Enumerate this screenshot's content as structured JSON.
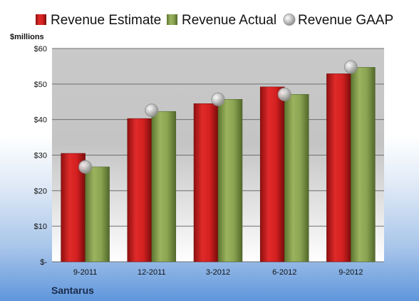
{
  "chart_data": {
    "type": "bar",
    "ylabel": "$millions",
    "company": "Santarus",
    "categories": [
      "9-2011",
      "12-2011",
      "3-2012",
      "6-2012",
      "9-2012"
    ],
    "yticks": [
      "$-",
      "$10",
      "$20",
      "$30",
      "$40",
      "$50",
      "$60"
    ],
    "ylim": [
      0,
      60
    ],
    "grid": true,
    "legend_position": "top",
    "series": [
      {
        "name": "Revenue Estimate",
        "kind": "bar",
        "color": "#c81e1e",
        "values": [
          30.5,
          40.3,
          44.5,
          49.2,
          52.9
        ]
      },
      {
        "name": "Revenue Actual",
        "kind": "bar",
        "color": "#7f9a48",
        "values": [
          26.7,
          42.3,
          45.7,
          47.1,
          54.7
        ]
      },
      {
        "name": "Revenue GAAP",
        "kind": "marker",
        "color": "#b8b8b8",
        "values": [
          26.7,
          42.6,
          45.7,
          47.1,
          54.8
        ]
      }
    ]
  }
}
